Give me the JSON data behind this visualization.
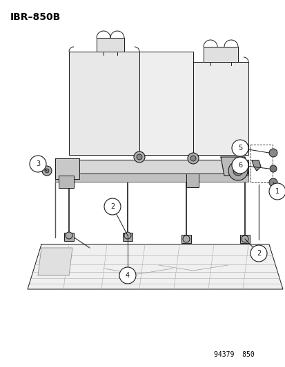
{
  "title": "IBR–850B",
  "footer": "94379  850",
  "background_color": "#ffffff",
  "text_color": "#000000",
  "fig_width": 4.14,
  "fig_height": 5.33,
  "dpi": 100,
  "title_fontsize": 10,
  "title_fontweight": "bold",
  "footer_fontsize": 7
}
